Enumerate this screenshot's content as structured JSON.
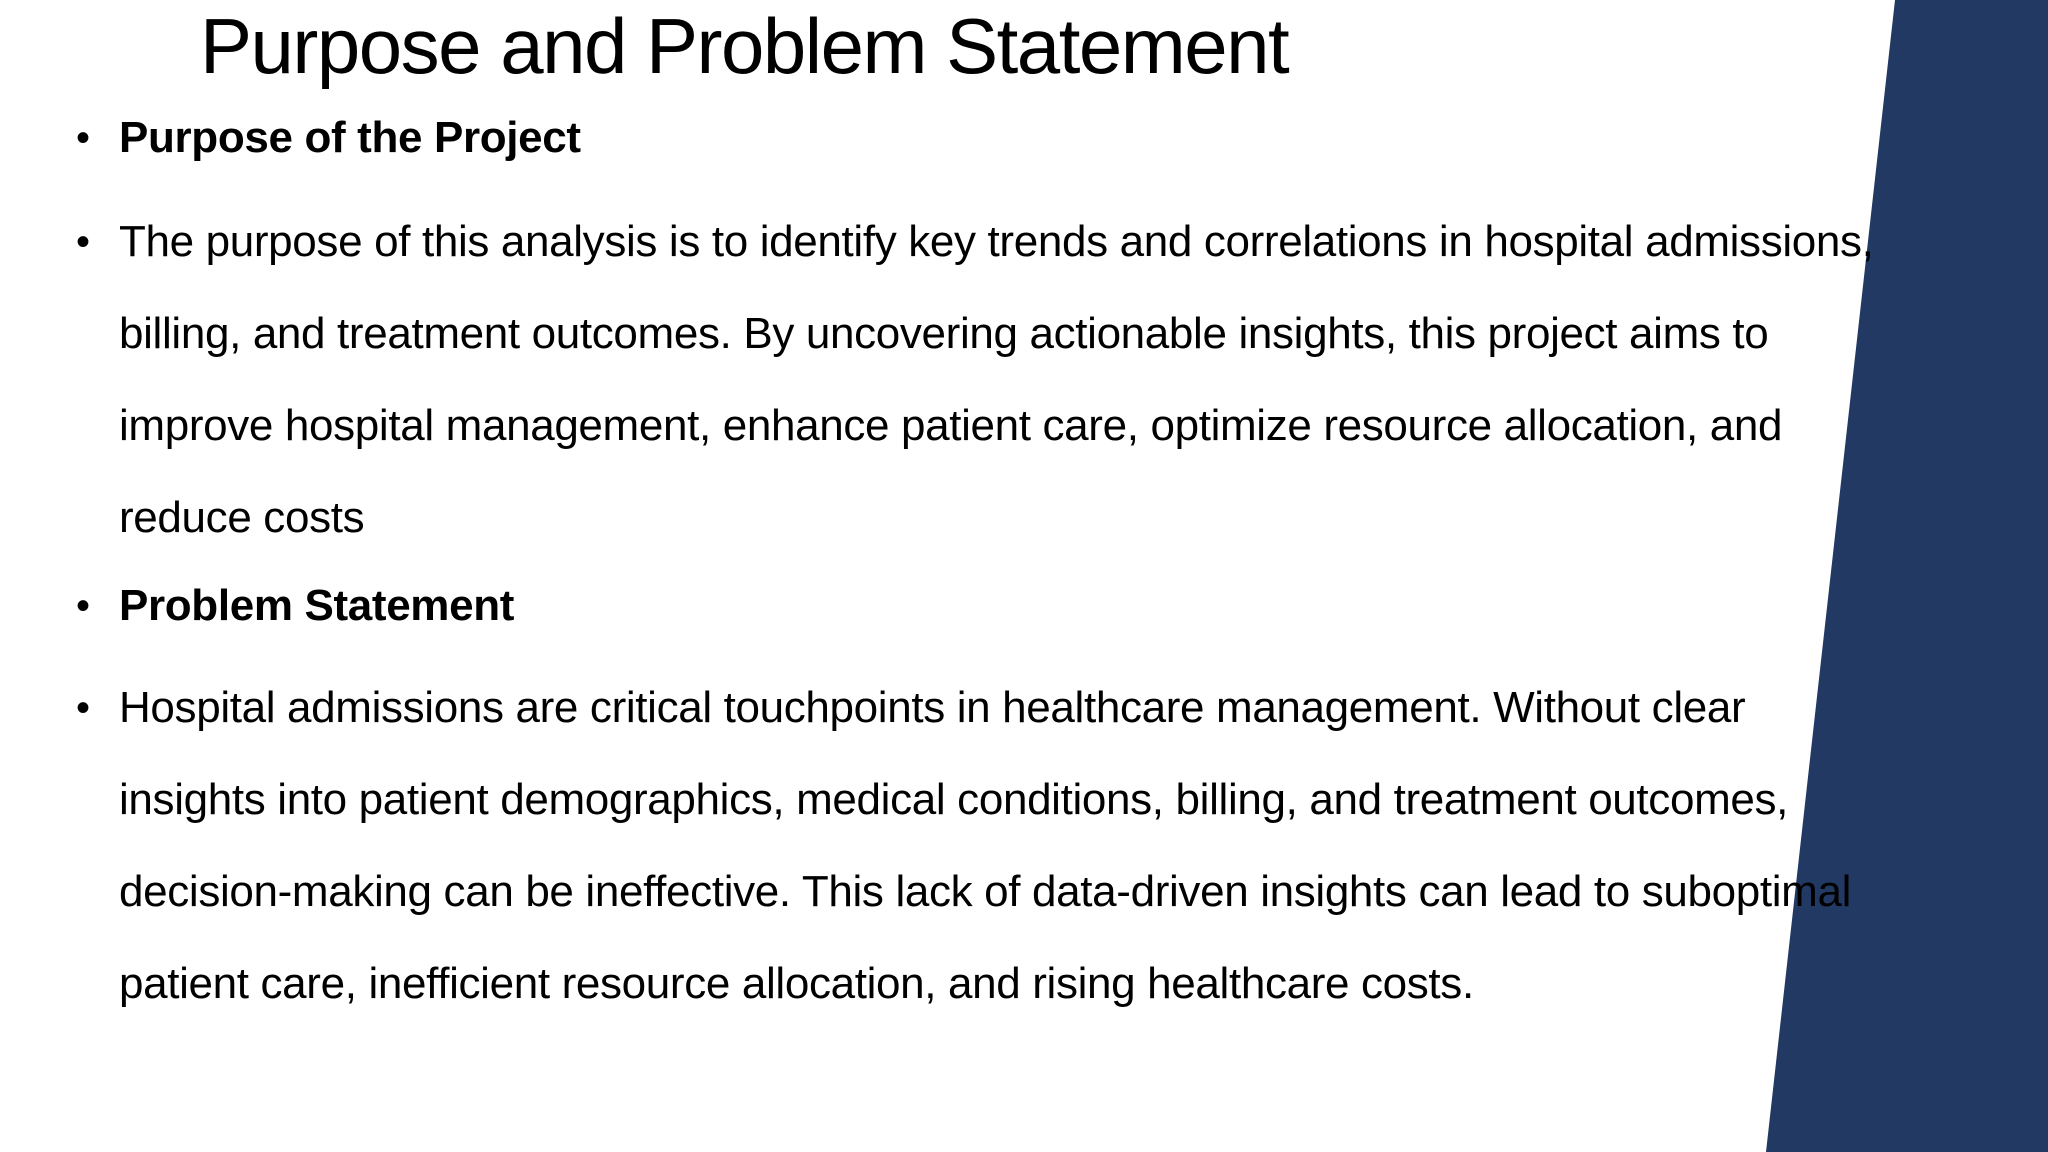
{
  "slide": {
    "title": "Purpose and Problem Statement",
    "colors": {
      "background": "#ffffff",
      "accent_panel": "#223963",
      "text": "#000000"
    },
    "bullets": [
      {
        "style": "bold",
        "text": "Purpose of the Project"
      },
      {
        "style": "regular",
        "text": "The purpose of this analysis is to identify key trends and correlations in hospital admissions, billing, and treatment outcomes. By uncovering actionable insights, this project aims to improve hospital management, enhance patient care, optimize resource allocation, and reduce costs"
      },
      {
        "style": "bold",
        "text": "Problem Statement"
      },
      {
        "style": "regular",
        "text": "Hospital admissions are critical touchpoints in healthcare management. Without clear insights into patient demographics, medical conditions, billing, and treatment outcomes, decision-making can be ineffective. This lack of data-driven insights can lead to suboptimal patient care, inefficient resource allocation, and rising healthcare costs."
      }
    ]
  }
}
